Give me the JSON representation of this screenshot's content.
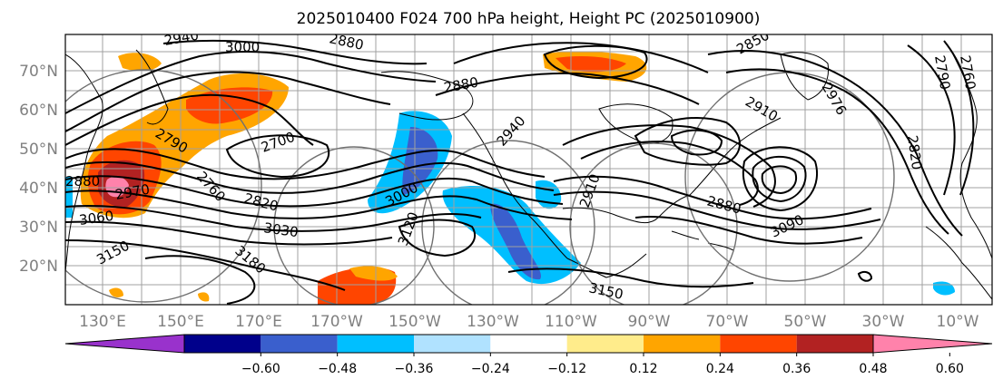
{
  "title": "2025010400 F024 700 hPa height, Height PC (2025010900)",
  "x_ticks": [
    "130°E",
    "150°E",
    "170°E",
    "170°W",
    "150°W",
    "130°W",
    "110°W",
    "90°W",
    "70°W",
    "50°W",
    "30°W",
    "10°W"
  ],
  "y_ticks": [
    "70°N",
    "60°N",
    "50°N",
    "40°N",
    "30°N",
    "20°N"
  ],
  "colorbar": {
    "colors": [
      "#9932cc",
      "#00008b",
      "#3a5fcd",
      "#00bfff",
      "#b0e2ff",
      "#ffffff",
      "#ffec8b",
      "#ffa500",
      "#ff4500",
      "#b22222",
      "#ff82ab"
    ],
    "tick_labels": [
      "−0.60",
      "−0.48",
      "−0.36",
      "−0.24",
      "−0.12",
      "0.12",
      "0.24",
      "0.36",
      "0.48",
      "0.60"
    ]
  },
  "contour_labels": [
    {
      "text": "2940"
    },
    {
      "text": "3000"
    },
    {
      "text": "2880"
    },
    {
      "text": "2850"
    },
    {
      "text": "2976"
    },
    {
      "text": "2790"
    },
    {
      "text": "2760"
    },
    {
      "text": "2880"
    },
    {
      "text": "2940"
    },
    {
      "text": "2790"
    },
    {
      "text": "2820"
    },
    {
      "text": "2700"
    },
    {
      "text": "2760"
    },
    {
      "text": "2910"
    },
    {
      "text": "2880"
    },
    {
      "text": "2970"
    },
    {
      "text": "3000"
    },
    {
      "text": "3030"
    },
    {
      "text": "3060"
    },
    {
      "text": "3120"
    },
    {
      "text": "3150"
    },
    {
      "text": "3180"
    },
    {
      "text": "3150"
    },
    {
      "text": "3090"
    },
    {
      "text": "2880"
    },
    {
      "text": "2910"
    },
    {
      "text": "2820"
    }
  ]
}
